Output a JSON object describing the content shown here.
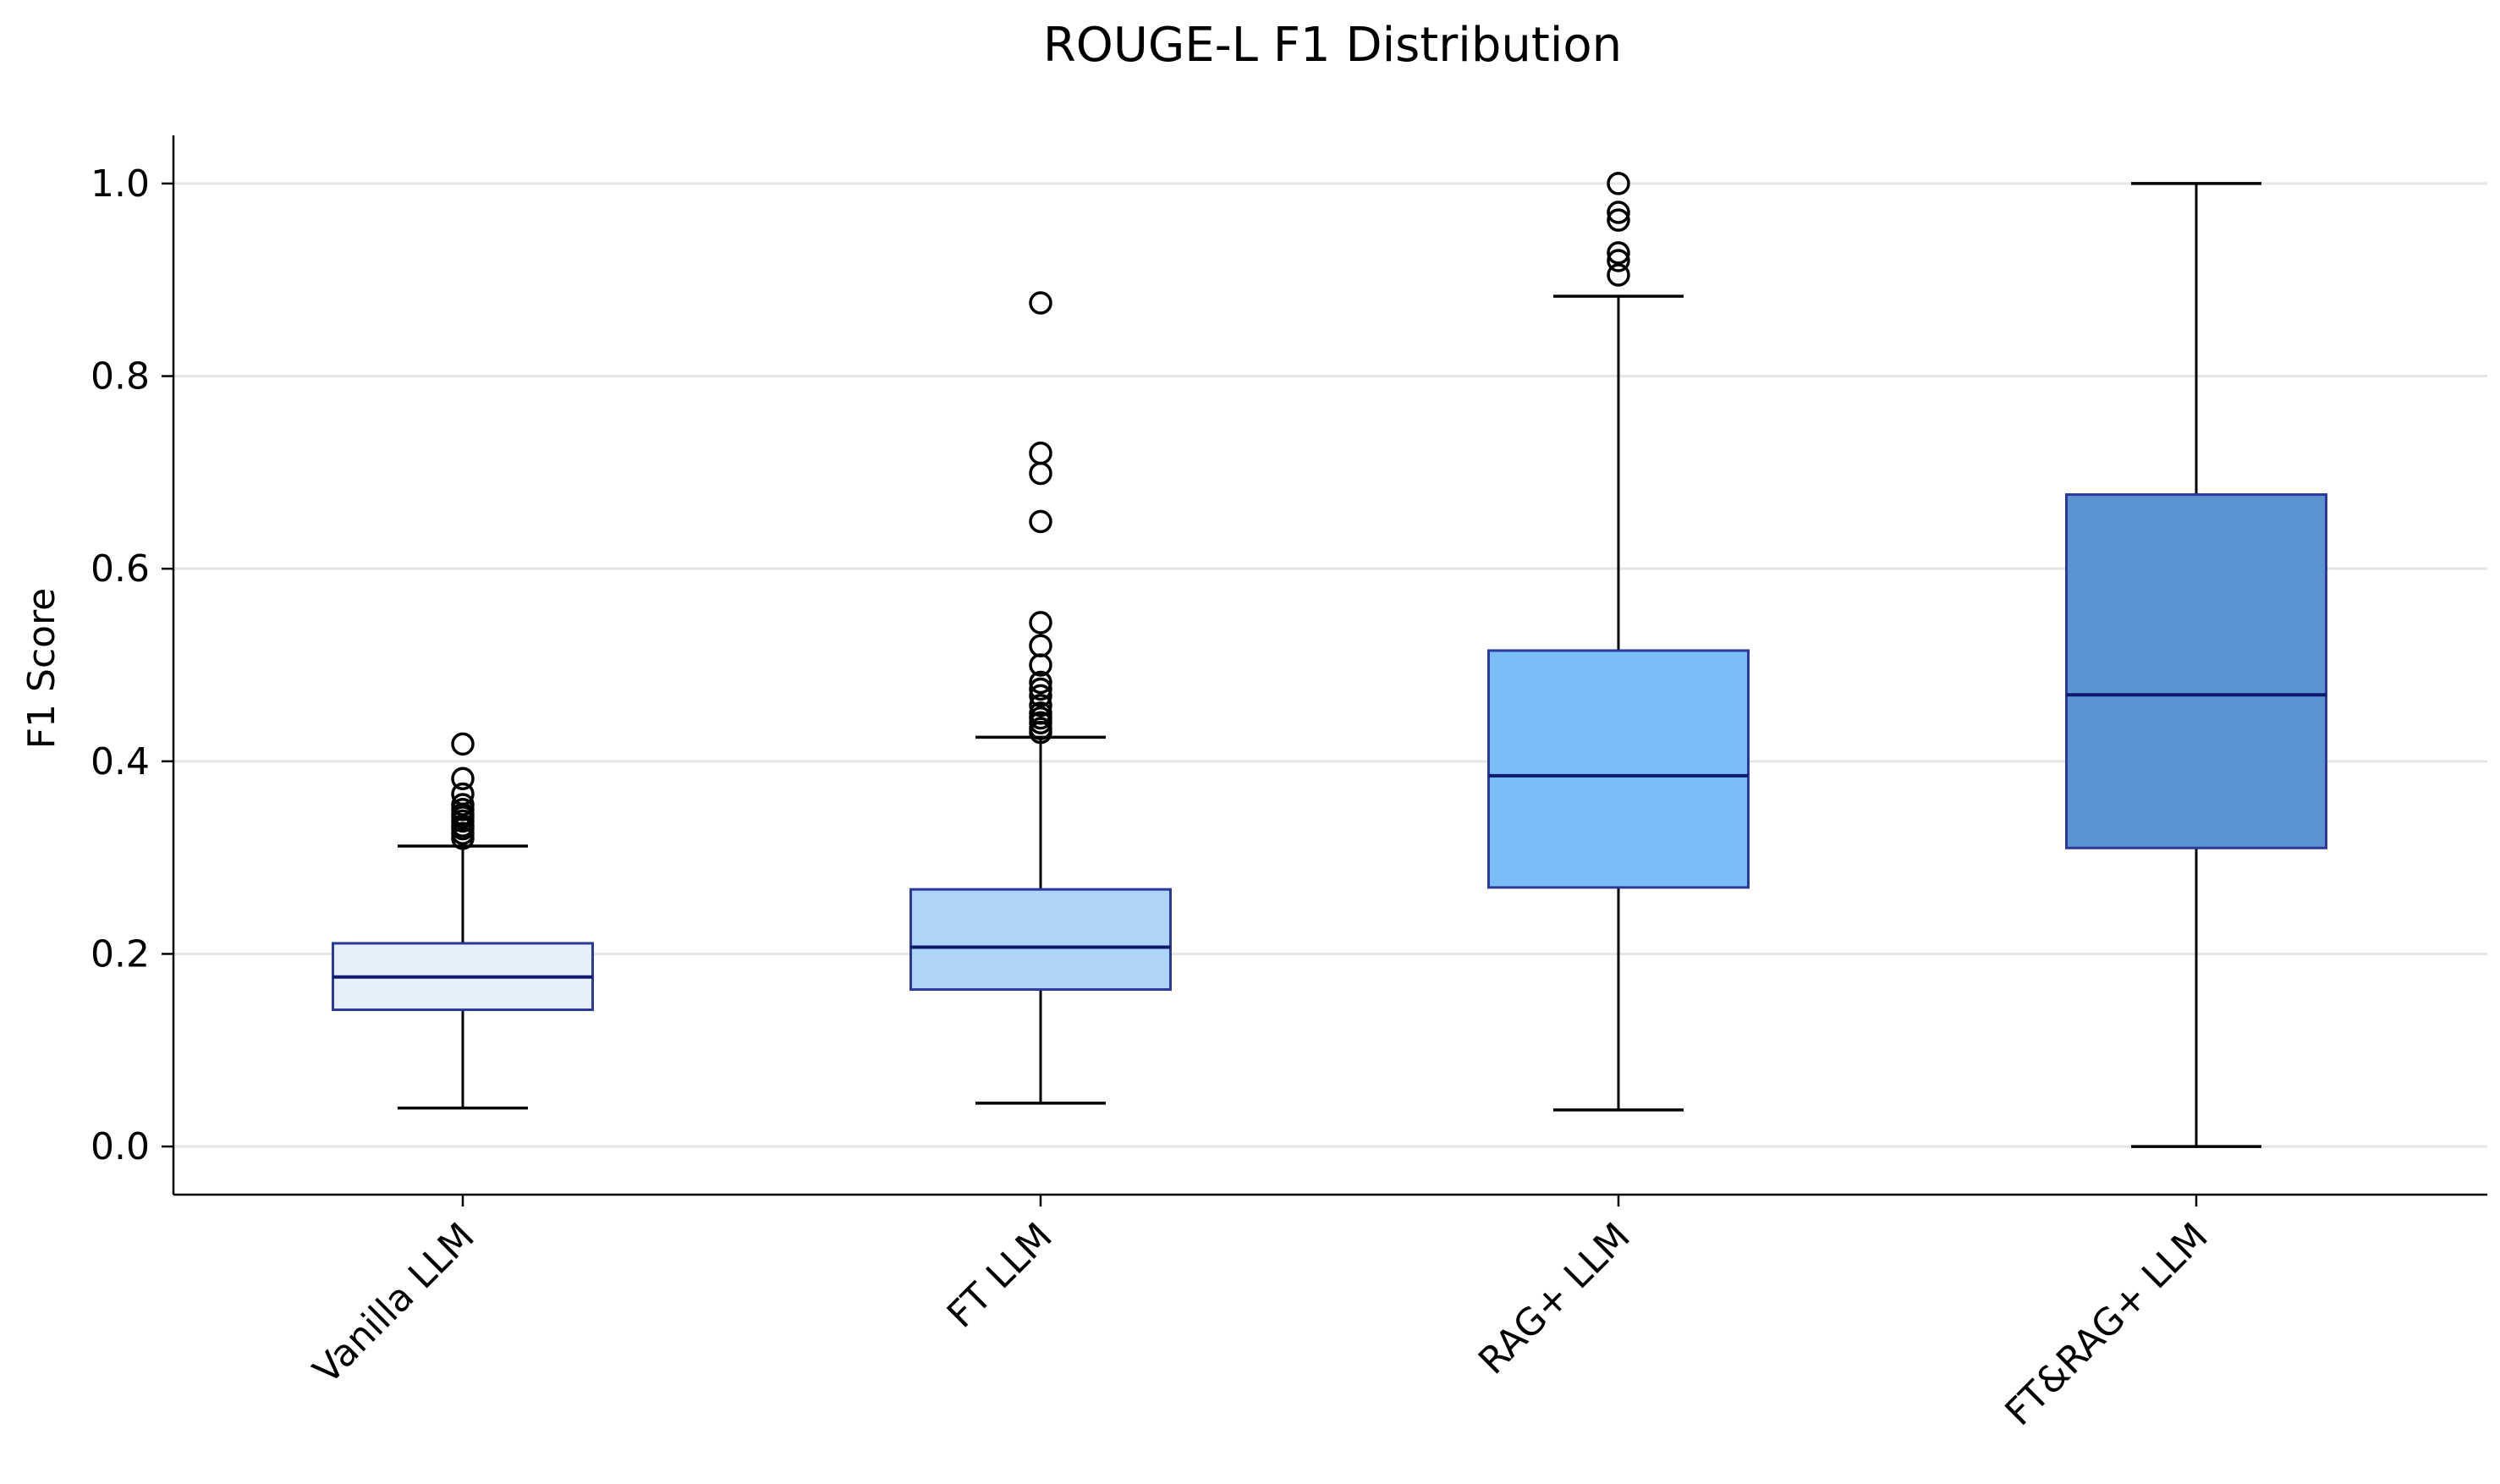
{
  "chart_data": {
    "type": "boxplot",
    "title": "ROUGE-L F1 Distribution",
    "xlabel": "",
    "ylabel": "F1 Score",
    "ylim": [
      -0.05,
      1.05
    ],
    "yticks": [
      0.0,
      0.2,
      0.4,
      0.6,
      0.8,
      1.0
    ],
    "ytick_labels": [
      "0.0",
      "0.2",
      "0.4",
      "0.6",
      "0.8",
      "1.0"
    ],
    "grid": "horizontal",
    "categories": [
      "Vanilla LLM",
      "FT LLM",
      "RAG+ LLM",
      "FT&RAG+ LLM"
    ],
    "boxes": [
      {
        "category": "Vanilla LLM",
        "whisker_low": 0.04,
        "q1": 0.142,
        "median": 0.176,
        "q3": 0.211,
        "whisker_high": 0.312,
        "outliers": [
          0.418,
          0.382,
          0.366,
          0.355,
          0.35,
          0.345,
          0.342,
          0.338,
          0.333,
          0.33,
          0.325,
          0.32
        ],
        "fill": "#e6f0fb"
      },
      {
        "category": "FT LLM",
        "whisker_low": 0.045,
        "q1": 0.163,
        "median": 0.207,
        "q3": 0.267,
        "whisker_high": 0.425,
        "outliers": [
          0.876,
          0.72,
          0.699,
          0.649,
          0.544,
          0.52,
          0.5,
          0.482,
          0.475,
          0.468,
          0.458,
          0.45,
          0.445,
          0.44,
          0.434,
          0.43
        ],
        "fill": "#aed4f8"
      },
      {
        "category": "RAG+ LLM",
        "whisker_low": 0.038,
        "q1": 0.269,
        "median": 0.385,
        "q3": 0.515,
        "whisker_high": 0.883,
        "outliers": [
          1.0,
          0.97,
          0.962,
          0.928,
          0.92,
          0.905
        ],
        "fill": "#7abdf6"
      },
      {
        "category": "FT&RAG+ LLM",
        "whisker_low": 0.0,
        "q1": 0.31,
        "median": 0.469,
        "q3": 0.677,
        "whisker_high": 1.0,
        "outliers": [],
        "fill": "#5b93d1"
      }
    ],
    "colors": {
      "box_edge": "#2b3a9a",
      "median": "#0d1a6e",
      "whisker": "#000000",
      "grid": "#e5e5e5",
      "axis": "#000000"
    }
  }
}
